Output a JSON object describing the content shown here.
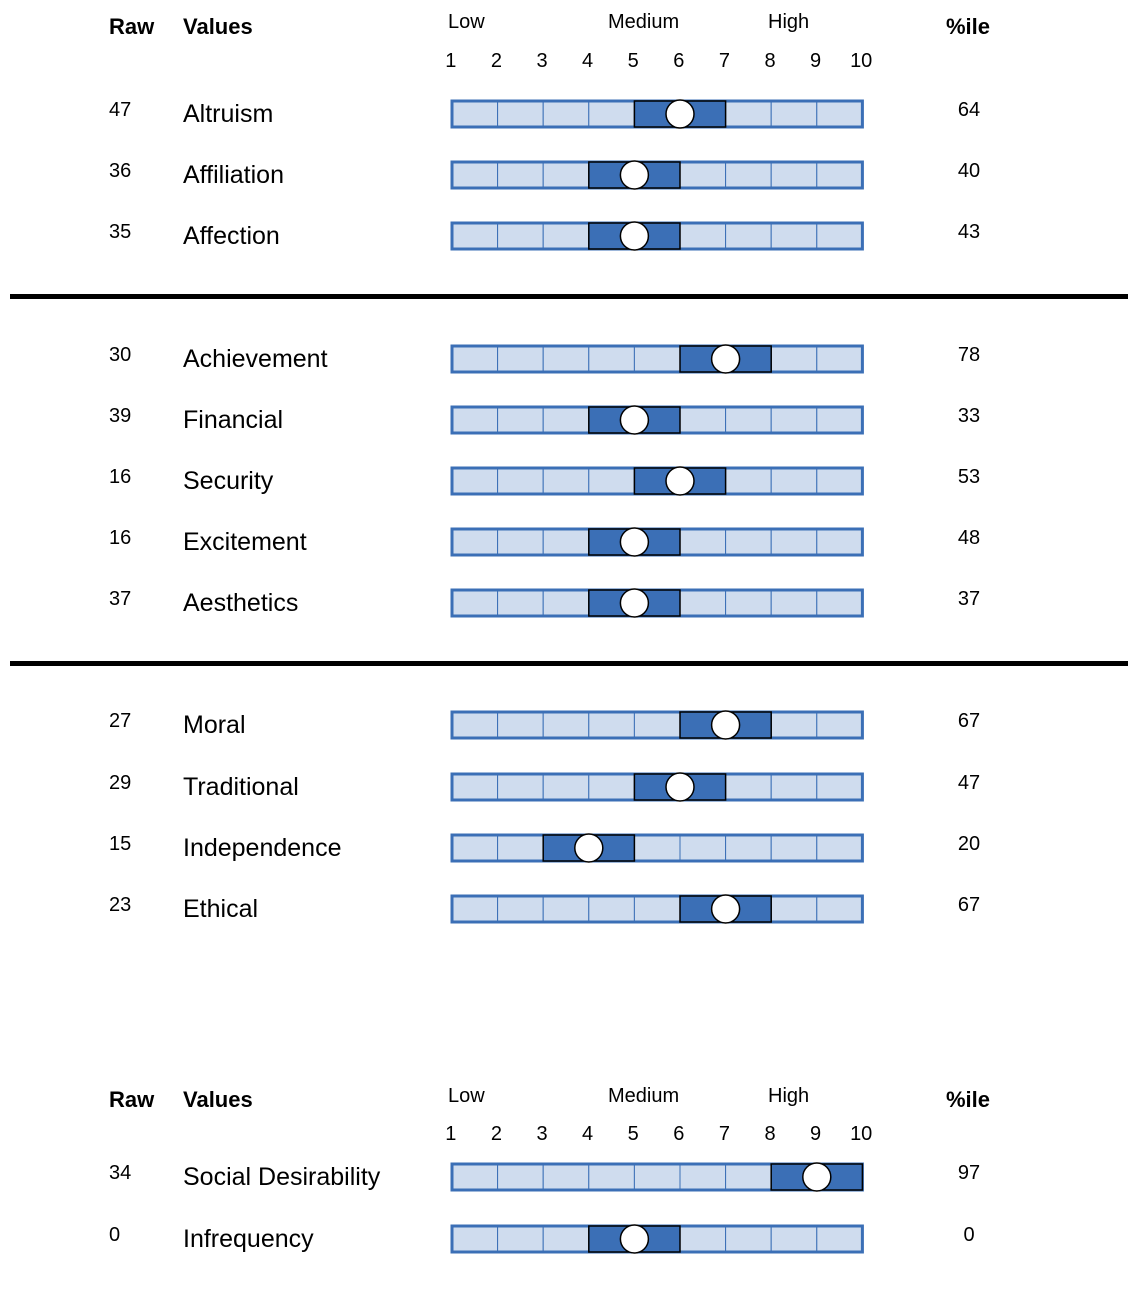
{
  "headers": {
    "raw": "Raw",
    "values": "Values",
    "low": "Low",
    "medium": "Medium",
    "high": "High",
    "pctile": "%ile",
    "ticks": [
      "1",
      "2",
      "3",
      "4",
      "5",
      "6",
      "7",
      "8",
      "9",
      "10"
    ]
  },
  "colors": {
    "cell_fill": "#cfdcee",
    "band_fill": "#3b6fb6",
    "border": "#3b6fb6",
    "marker": "#ffffff"
  },
  "chart_data": [
    {
      "type": "table",
      "scale": [
        1,
        10
      ],
      "rows": [
        {
          "raw": "47",
          "label": "Altruism",
          "score": 6,
          "pctile": "64"
        },
        {
          "raw": "36",
          "label": "Affiliation",
          "score": 5,
          "pctile": "40"
        },
        {
          "raw": "35",
          "label": "Affection",
          "score": 5,
          "pctile": "43"
        },
        {
          "raw": "30",
          "label": "Achievement",
          "score": 7,
          "pctile": "78"
        },
        {
          "raw": "39",
          "label": "Financial",
          "score": 5,
          "pctile": "33"
        },
        {
          "raw": "16",
          "label": "Security",
          "score": 6,
          "pctile": "53"
        },
        {
          "raw": "16",
          "label": "Excitement",
          "score": 5,
          "pctile": "48"
        },
        {
          "raw": "37",
          "label": "Aesthetics",
          "score": 5,
          "pctile": "37"
        },
        {
          "raw": "27",
          "label": "Moral",
          "score": 7,
          "pctile": "67"
        },
        {
          "raw": "29",
          "label": "Traditional",
          "score": 6,
          "pctile": "47"
        },
        {
          "raw": "15",
          "label": "Independence",
          "score": 4,
          "pctile": "20"
        },
        {
          "raw": "23",
          "label": "Ethical",
          "score": 7,
          "pctile": "67"
        }
      ]
    },
    {
      "type": "table",
      "scale": [
        1,
        10
      ],
      "rows": [
        {
          "raw": "34",
          "label": "Social Desirability",
          "score": 9,
          "pctile": "97"
        },
        {
          "raw": "0",
          "label": "Infrequency",
          "score": 5,
          "pctile": "0"
        }
      ]
    }
  ]
}
